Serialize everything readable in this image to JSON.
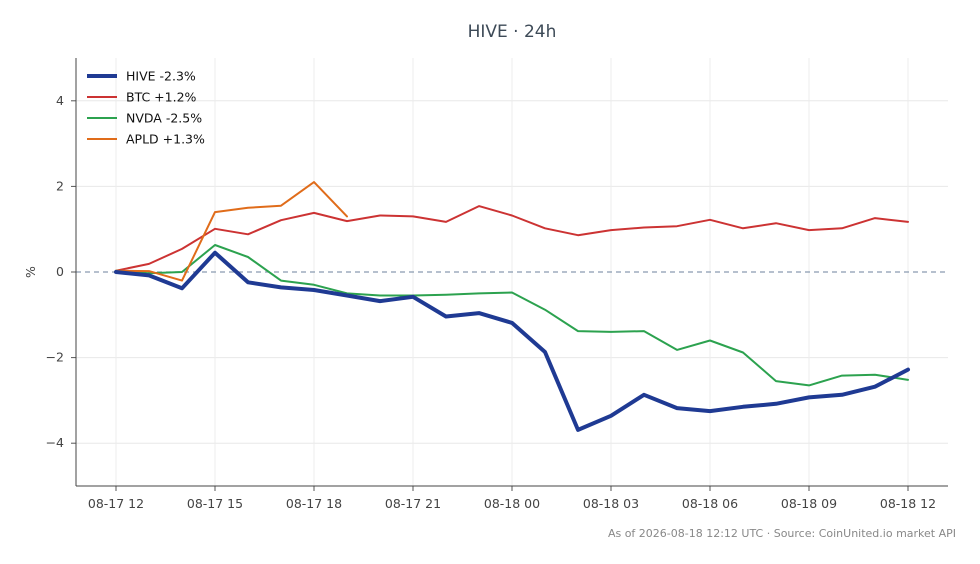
{
  "chart_data": {
    "type": "line",
    "title": "HIVE · 24h",
    "ylabel": "%",
    "xlabel": "",
    "ylim": [
      -5,
      5
    ],
    "grid": true,
    "zero_line": true,
    "legend_placement": "top-left",
    "x_tick_labels": [
      "08-17 12",
      "08-17 15",
      "08-17 18",
      "08-17 21",
      "08-18 00",
      "08-18 03",
      "08-18 06",
      "08-18 09",
      "08-18 12"
    ],
    "y_ticks": [
      {
        "value": 4,
        "label": "4"
      },
      {
        "value": 2,
        "label": "2"
      },
      {
        "value": 0,
        "label": "0"
      },
      {
        "value": -2,
        "label": "−2"
      },
      {
        "value": -4,
        "label": "−4"
      }
    ],
    "x": [
      "08-17 12",
      "08-17 13",
      "08-17 14",
      "08-17 15",
      "08-17 16",
      "08-17 17",
      "08-17 18",
      "08-17 19",
      "08-17 20",
      "08-17 21",
      "08-17 22",
      "08-17 23",
      "08-18 00",
      "08-18 01",
      "08-18 02",
      "08-18 03",
      "08-18 04",
      "08-18 05",
      "08-18 06",
      "08-18 07",
      "08-18 08",
      "08-18 09",
      "08-18 10",
      "08-18 11",
      "08-18 12"
    ],
    "series": [
      {
        "name": "HIVE -2.3%",
        "color": "#1f3a93",
        "width": 4,
        "values": [
          0.0,
          -0.08,
          -0.38,
          0.45,
          -0.24,
          -0.36,
          -0.42,
          -0.55,
          -0.68,
          -0.58,
          -1.04,
          -0.96,
          -1.19,
          -1.87,
          -3.69,
          -3.36,
          -2.87,
          -3.18,
          -3.25,
          -3.15,
          -3.08,
          -2.93,
          -2.87,
          -2.68,
          -2.28
        ]
      },
      {
        "name": "BTC +1.2%",
        "color": "#cc3333",
        "width": 2,
        "values": [
          0.03,
          0.19,
          0.54,
          1.01,
          0.88,
          1.21,
          1.38,
          1.19,
          1.32,
          1.3,
          1.17,
          1.54,
          1.32,
          1.02,
          0.86,
          0.98,
          1.04,
          1.07,
          1.22,
          1.02,
          1.14,
          0.98,
          1.02,
          1.26,
          1.17
        ]
      },
      {
        "name": "NVDA -2.5%",
        "color": "#2ca24f",
        "width": 2,
        "values": [
          0.03,
          -0.03,
          0.0,
          0.63,
          0.35,
          -0.2,
          -0.3,
          -0.5,
          -0.55,
          -0.55,
          -0.53,
          -0.5,
          -0.48,
          -0.88,
          -1.38,
          -1.4,
          -1.38,
          -1.82,
          -1.6,
          -1.88,
          -2.55,
          -2.65,
          -2.42,
          -2.4,
          -2.52
        ]
      },
      {
        "name": "APLD +1.3%",
        "color": "#e06c1a",
        "width": 2,
        "values": [
          0.03,
          0.02,
          -0.2,
          1.4,
          1.5,
          1.55,
          2.1,
          1.3,
          null,
          null,
          null,
          null,
          null,
          null,
          null,
          null,
          null,
          null,
          null,
          null,
          null,
          null,
          null,
          null,
          null
        ]
      }
    ]
  },
  "footer": "As of 2026-08-18 12:12 UTC · Source: CoinUnited.io market API"
}
